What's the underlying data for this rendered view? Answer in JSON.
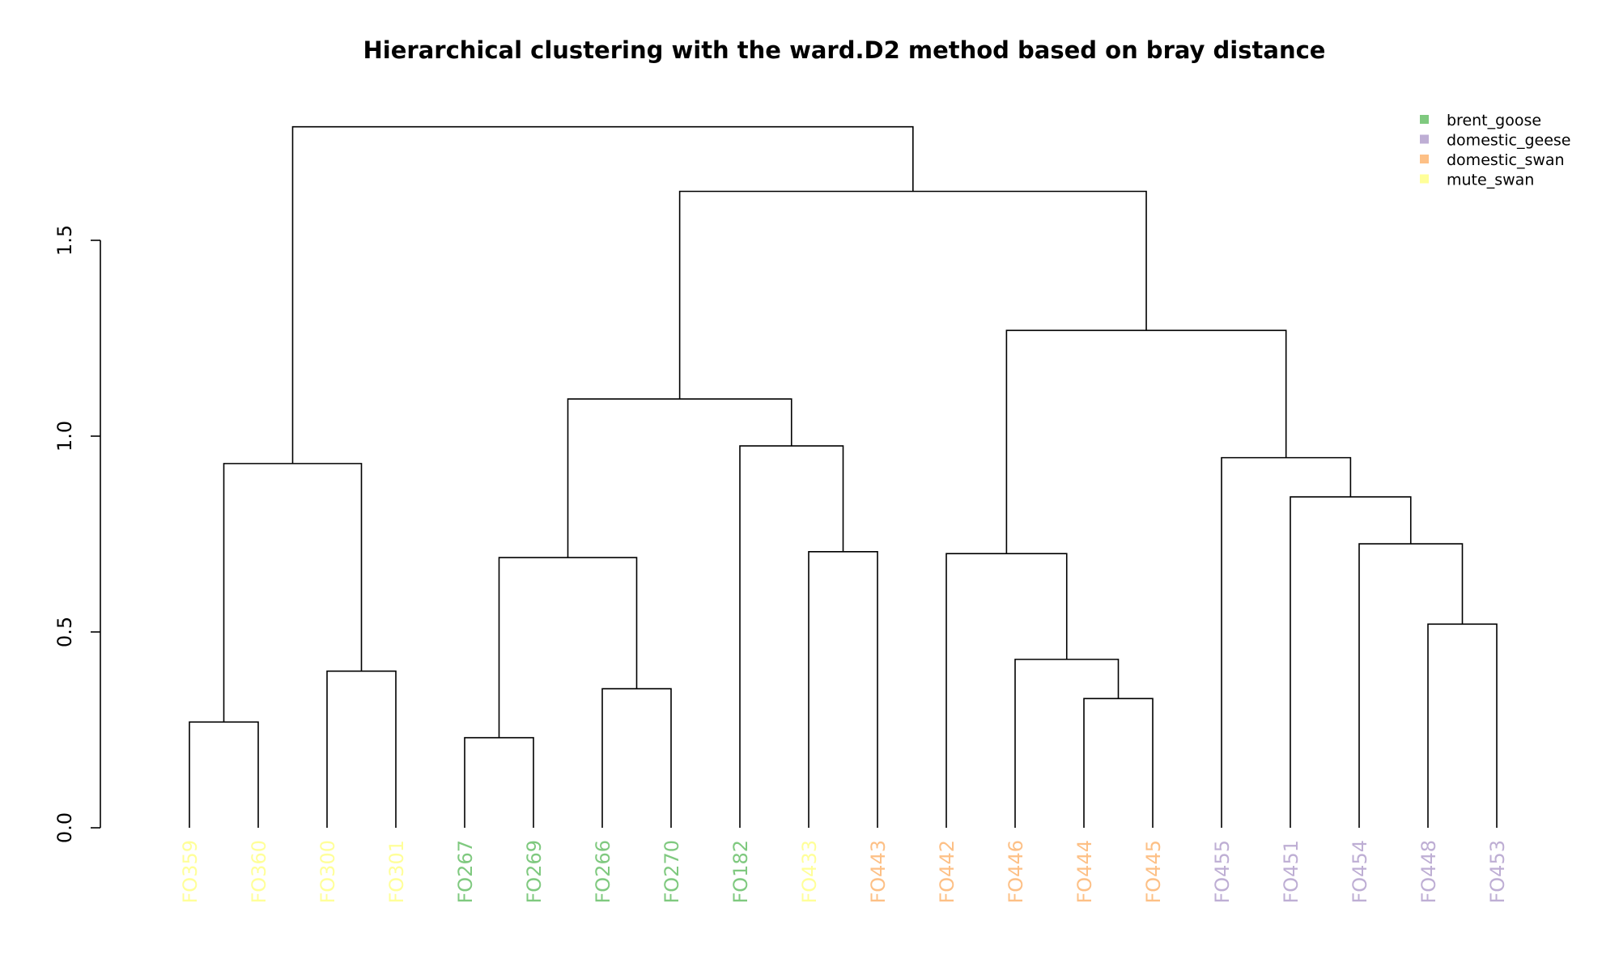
{
  "chart_data": {
    "type": "dendrogram",
    "title": "Hierarchical clustering with the ward.D2 method based on bray distance",
    "ylim": [
      0,
      1.5
    ],
    "yticks": [
      {
        "value": 0.0,
        "label": "0.0"
      },
      {
        "value": 0.5,
        "label": "0.5"
      },
      {
        "value": 1.0,
        "label": "1.0"
      },
      {
        "value": 1.5,
        "label": "1.5"
      }
    ],
    "legend": {
      "position": "top-right",
      "entries": [
        {
          "name": "brent_goose",
          "color": "#7fc97f"
        },
        {
          "name": "domestic_geese",
          "color": "#beaed4"
        },
        {
          "name": "domestic_swan",
          "color": "#fdc086"
        },
        {
          "name": "mute_swan",
          "color": "#ffff99"
        }
      ]
    },
    "leaves": [
      {
        "label": "FO359",
        "group": "mute_swan"
      },
      {
        "label": "FO360",
        "group": "mute_swan"
      },
      {
        "label": "FO300",
        "group": "mute_swan"
      },
      {
        "label": "FO301",
        "group": "mute_swan"
      },
      {
        "label": "FO267",
        "group": "brent_goose"
      },
      {
        "label": "FO269",
        "group": "brent_goose"
      },
      {
        "label": "FO266",
        "group": "brent_goose"
      },
      {
        "label": "FO270",
        "group": "brent_goose"
      },
      {
        "label": "FO182",
        "group": "brent_goose"
      },
      {
        "label": "FO433",
        "group": "mute_swan"
      },
      {
        "label": "FO443",
        "group": "domestic_swan"
      },
      {
        "label": "FO442",
        "group": "domestic_swan"
      },
      {
        "label": "FO446",
        "group": "domestic_swan"
      },
      {
        "label": "FO444",
        "group": "domestic_swan"
      },
      {
        "label": "FO445",
        "group": "domestic_swan"
      },
      {
        "label": "FO455",
        "group": "domestic_geese"
      },
      {
        "label": "FO451",
        "group": "domestic_geese"
      },
      {
        "label": "FO454",
        "group": "domestic_geese"
      },
      {
        "label": "FO448",
        "group": "domestic_geese"
      },
      {
        "label": "FO453",
        "group": "domestic_geese"
      }
    ],
    "merges": [
      {
        "id": "m1",
        "left": 0,
        "right": 1,
        "height": 0.27
      },
      {
        "id": "m2",
        "left": 2,
        "right": 3,
        "height": 0.4
      },
      {
        "id": "m3",
        "left": "m1",
        "right": "m2",
        "height": 0.93
      },
      {
        "id": "m4",
        "left": 4,
        "right": 5,
        "height": 0.23
      },
      {
        "id": "m5",
        "left": 6,
        "right": 7,
        "height": 0.355
      },
      {
        "id": "m6",
        "left": "m4",
        "right": "m5",
        "height": 0.69
      },
      {
        "id": "m7",
        "left": 9,
        "right": 10,
        "height": 0.705
      },
      {
        "id": "m8",
        "left": 8,
        "right": "m7",
        "height": 0.975
      },
      {
        "id": "m9",
        "left": "m6",
        "right": "m8",
        "height": 1.095
      },
      {
        "id": "m10",
        "left": 13,
        "right": 14,
        "height": 0.33
      },
      {
        "id": "m11",
        "left": 12,
        "right": "m10",
        "height": 0.43
      },
      {
        "id": "m12",
        "left": 11,
        "right": "m11",
        "height": 0.7
      },
      {
        "id": "m13",
        "left": 18,
        "right": 19,
        "height": 0.52
      },
      {
        "id": "m14",
        "left": 17,
        "right": "m13",
        "height": 0.725
      },
      {
        "id": "m15",
        "left": 16,
        "right": "m14",
        "height": 0.845
      },
      {
        "id": "m16",
        "left": 15,
        "right": "m15",
        "height": 0.945
      },
      {
        "id": "m17",
        "left": "m12",
        "right": "m16",
        "height": 1.27
      },
      {
        "id": "m18",
        "left": "m9",
        "right": "m17",
        "height": 1.625
      },
      {
        "id": "m19",
        "left": "m3",
        "right": "m18",
        "height": 1.79
      }
    ]
  }
}
